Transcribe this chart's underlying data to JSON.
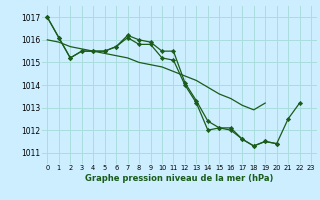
{
  "bg_color": "#cceeff",
  "grid_color": "#aadddd",
  "line_color": "#1a5c1a",
  "marker_color": "#1a5c1a",
  "xlabel": "Graphe pression niveau de la mer (hPa)",
  "xlabel_color": "#1a5c1a",
  "ylim": [
    1010.5,
    1017.5
  ],
  "xlim": [
    -0.5,
    23.5
  ],
  "yticks": [
    1011,
    1012,
    1013,
    1014,
    1015,
    1016,
    1017
  ],
  "xticks": [
    0,
    1,
    2,
    3,
    4,
    5,
    6,
    7,
    8,
    9,
    10,
    11,
    12,
    13,
    14,
    15,
    16,
    17,
    18,
    19,
    20,
    21,
    22,
    23
  ],
  "series": [
    [
      1017.0,
      1016.1,
      1015.2,
      1015.5,
      1015.5,
      1015.5,
      1015.7,
      1016.1,
      1015.8,
      1015.8,
      1015.2,
      1015.1,
      1014.0,
      1013.2,
      1012.0,
      1012.1,
      1012.1,
      1011.6,
      1011.3,
      1011.5,
      1011.4,
      1012.5,
      1013.2,
      null
    ],
    [
      1017.0,
      1016.1,
      1015.2,
      1015.5,
      1015.5,
      1015.5,
      1015.7,
      1016.2,
      1016.0,
      1015.9,
      1015.5,
      1015.5,
      1014.1,
      1013.3,
      1012.4,
      1012.1,
      1012.0,
      1011.6,
      1011.3,
      1011.5,
      1011.4,
      null,
      null,
      null
    ],
    [
      1016.0,
      1015.9,
      1015.7,
      1015.6,
      1015.5,
      1015.4,
      1015.3,
      1015.2,
      1015.0,
      1014.9,
      1014.8,
      1014.6,
      1014.4,
      1014.2,
      1013.9,
      1013.6,
      1013.4,
      1013.1,
      1012.9,
      1013.2,
      null,
      null,
      null,
      null
    ]
  ]
}
